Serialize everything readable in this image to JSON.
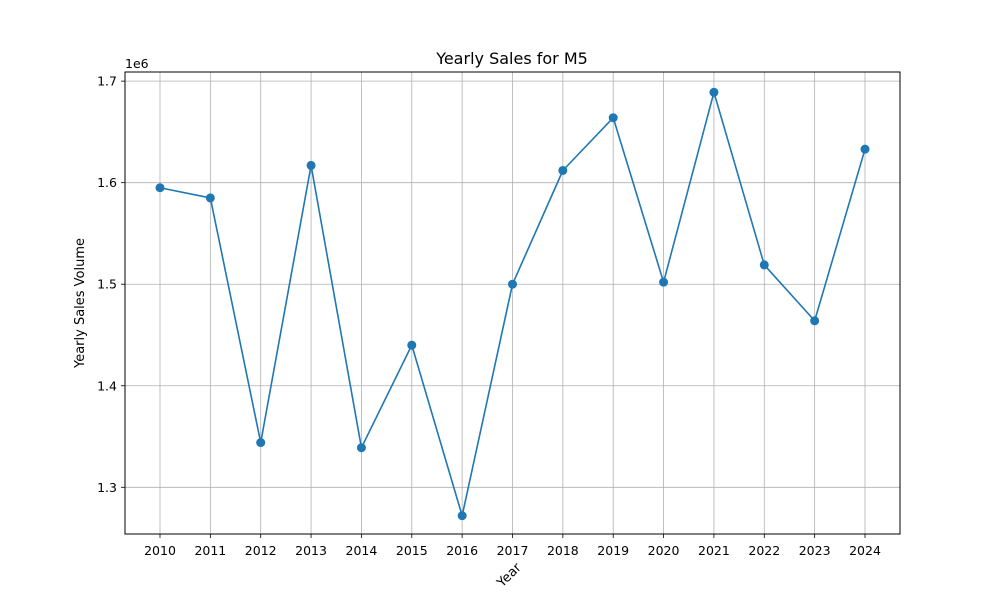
{
  "chart_data": {
    "type": "line",
    "title": "Yearly Sales for M5",
    "xlabel": "Year",
    "ylabel": "Yearly Sales Volume",
    "y_multiplier_label": "1e6",
    "categories": [
      "2010",
      "2011",
      "2012",
      "2013",
      "2014",
      "2015",
      "2016",
      "2017",
      "2018",
      "2019",
      "2020",
      "2021",
      "2022",
      "2023",
      "2024"
    ],
    "series": [
      {
        "values": [
          1595000,
          1585000,
          1344000,
          1617000,
          1339000,
          1440000,
          1272000,
          1500000,
          1612000,
          1664000,
          1502000,
          1689000,
          1519000,
          1464000,
          1633000
        ],
        "color": "#1f77b4",
        "marker": "circle"
      }
    ],
    "ylim": [
      1254000,
      1709000
    ],
    "yticks": [
      1300000,
      1400000,
      1500000,
      1600000,
      1700000
    ],
    "ytick_labels": [
      "1.3",
      "1.4",
      "1.5",
      "1.6",
      "1.7"
    ],
    "grid": true,
    "grid_color": "#b0b0b0"
  }
}
